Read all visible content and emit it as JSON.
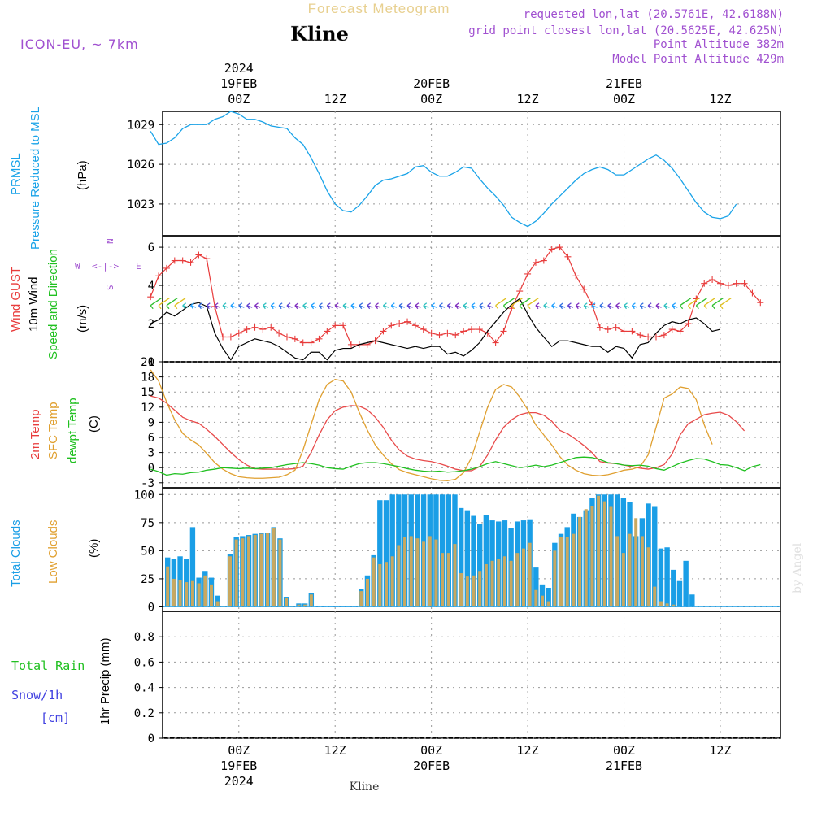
{
  "header": {
    "title": "Forecast Meteogram",
    "location": "Kline",
    "model": "ICON-EU, ~ 7km",
    "requested": "requested lon,lat (20.5761E, 42.6188N)",
    "closest": "grid point closest lon,lat (20.5625E, 42.625N)",
    "point_alt": "Point Altitude 382m",
    "model_alt": "Model Point Altitude 429m",
    "watermark": "by Angel",
    "footer_location": "Kline"
  },
  "colors": {
    "pressure": "#1aa3e8",
    "gust": "#e83c3c",
    "wind": "#000000",
    "temp": "#e84a4a",
    "sfc": "#e0a030",
    "dew": "#20c020",
    "total_cloud": "#1a9ee6",
    "low_cloud": "#c8a860",
    "purple": "#a050d0",
    "rain": "#20c020",
    "snow": "#4040e0"
  },
  "time_axis": {
    "top_labels": [
      {
        "line1": "2024",
        "line2": "19FEB",
        "line3": "00Z",
        "hour": 18
      },
      {
        "line1": "",
        "line2": "",
        "line3": "12Z",
        "hour": 30
      },
      {
        "line1": "",
        "line2": "20FEB",
        "line3": "00Z",
        "hour": 42
      },
      {
        "line1": "",
        "line2": "",
        "line3": "12Z",
        "hour": 54
      },
      {
        "line1": "",
        "line2": "21FEB",
        "line3": "00Z",
        "hour": 66
      },
      {
        "line1": "",
        "line2": "",
        "line3": "12Z",
        "hour": 78
      }
    ],
    "bottom_labels": [
      {
        "line1": "00Z",
        "line2": "19FEB",
        "line3": "2024",
        "hour": 18
      },
      {
        "line1": "12Z",
        "line2": "",
        "line3": "",
        "hour": 30
      },
      {
        "line1": "00Z",
        "line2": "20FEB",
        "line3": "",
        "hour": 42
      },
      {
        "line1": "12Z",
        "line2": "",
        "line3": "",
        "hour": 54
      },
      {
        "line1": "00Z",
        "line2": "21FEB",
        "line3": "",
        "hour": 66
      },
      {
        "line1": "12Z",
        "line2": "",
        "line3": "",
        "hour": 78
      }
    ]
  },
  "panels": {
    "pressure": {
      "label1": "PRMSL",
      "label2": "Pressure Reduced to MSL",
      "units": "(hPa)"
    },
    "wind": {
      "gust": "Wind GUST",
      "wind10": "10m Wind",
      "speed_dir": "Speed and Direction",
      "units": "(m/s)",
      "compass_n": "N",
      "compass_s": "S",
      "compass_w": "W",
      "compass_e": "E"
    },
    "temp": {
      "t2m": "2m Temp",
      "sfc": "SFC Temp",
      "dew": "dewpt Temp",
      "units": "(C)"
    },
    "clouds": {
      "total": "Total Clouds",
      "low": "Low Clouds",
      "units": "(%)"
    },
    "precip": {
      "rain": "Total  Rain",
      "snow": "Snow/1h",
      "snow_units": "[cm]",
      "ylabel": "1hr Precip (mm)"
    }
  },
  "chart_data": [
    {
      "type": "line",
      "title": "PRMSL Pressure Reduced to MSL",
      "ylabel": "(hPa)",
      "ylim": [
        1020.6,
        1030.0
      ],
      "yticks": [
        1023,
        1026,
        1029
      ],
      "x_start_hour": 7,
      "x_step_hours": 1,
      "series": [
        {
          "name": "PRMSL",
          "values": [
            1028.5,
            1027.5,
            1027.6,
            1028.0,
            1028.7,
            1029.0,
            1029.0,
            1029.0,
            1029.4,
            1029.6,
            1030.0,
            1029.8,
            1029.4,
            1029.4,
            1029.2,
            1028.9,
            1028.8,
            1028.7,
            1028.0,
            1027.5,
            1026.5,
            1025.3,
            1024.0,
            1023.0,
            1022.5,
            1022.4,
            1022.9,
            1023.6,
            1024.4,
            1024.8,
            1024.9,
            1025.1,
            1025.3,
            1025.8,
            1025.9,
            1025.4,
            1025.1,
            1025.1,
            1025.4,
            1025.8,
            1025.7,
            1024.9,
            1024.2,
            1023.6,
            1022.9,
            1022.0,
            1021.6,
            1021.3,
            1021.7,
            1022.3,
            1023.0,
            1023.6,
            1024.2,
            1024.8,
            1025.3,
            1025.6,
            1025.8,
            1025.6,
            1025.2,
            1025.2,
            1025.6,
            1026.0,
            1026.4,
            1026.7,
            1026.3,
            1025.7,
            1024.9,
            1024.0,
            1023.1,
            1022.4,
            1022.0,
            1021.9,
            1022.1,
            1023.0
          ]
        }
      ]
    },
    {
      "type": "line",
      "title": "Wind GUST / 10m Wind Speed and Direction",
      "ylabel": "(m/s)",
      "ylim": [
        0,
        6.6
      ],
      "yticks": [
        0,
        2,
        4,
        6
      ],
      "x_start_hour": 7,
      "x_step_hours": 1,
      "series": [
        {
          "name": "Wind GUST",
          "values": [
            3.4,
            4.5,
            4.9,
            5.3,
            5.3,
            5.2,
            5.6,
            5.4,
            2.9,
            1.3,
            1.3,
            1.5,
            1.7,
            1.8,
            1.7,
            1.8,
            1.5,
            1.3,
            1.2,
            1.0,
            1.0,
            1.2,
            1.6,
            1.9,
            1.9,
            0.9,
            0.9,
            0.9,
            1.1,
            1.6,
            1.9,
            2.0,
            2.1,
            1.9,
            1.7,
            1.5,
            1.4,
            1.5,
            1.4,
            1.6,
            1.7,
            1.7,
            1.5,
            1.0,
            1.6,
            2.8,
            3.7,
            4.6,
            5.2,
            5.3,
            5.9,
            6.0,
            5.5,
            4.5,
            3.8,
            3.0,
            1.8,
            1.7,
            1.8,
            1.6,
            1.6,
            1.4,
            1.3,
            1.3,
            1.4,
            1.7,
            1.6,
            2.0,
            3.3,
            4.1,
            4.3,
            4.1,
            4.0,
            4.1,
            4.1,
            3.6,
            3.1
          ]
        },
        {
          "name": "10m Wind",
          "values": [
            2.0,
            2.2,
            2.6,
            2.4,
            2.7,
            3.0,
            3.1,
            2.9,
            1.5,
            0.7,
            0.1,
            0.8,
            1.0,
            1.2,
            1.1,
            1.0,
            0.8,
            0.5,
            0.2,
            0.1,
            0.5,
            0.5,
            0.1,
            0.6,
            0.7,
            0.7,
            0.9,
            1.0,
            1.1,
            1.0,
            0.9,
            0.8,
            0.7,
            0.8,
            0.7,
            0.8,
            0.8,
            0.4,
            0.5,
            0.3,
            0.6,
            1.0,
            1.6,
            2.1,
            2.6,
            3.0,
            3.3,
            2.5,
            1.8,
            1.3,
            0.8,
            1.1,
            1.1,
            1.0,
            0.9,
            0.8,
            0.8,
            0.5,
            0.8,
            0.7,
            0.2,
            0.9,
            1.0,
            1.5,
            1.9,
            2.1,
            2.0,
            2.2,
            2.3,
            2.0,
            1.6,
            1.7
          ]
        },
        {
          "name": "Wind Direction",
          "values": [
            4,
            5,
            5,
            6,
            6,
            6,
            6,
            5,
            6,
            6,
            7,
            7,
            7,
            6,
            6,
            6,
            6,
            6,
            6,
            6,
            6,
            6,
            6,
            6,
            6,
            6,
            6,
            6,
            6,
            6,
            6,
            6,
            6,
            6,
            6,
            6,
            6,
            6,
            6,
            6,
            6,
            6,
            6,
            6,
            6,
            6,
            6,
            6,
            6,
            6,
            6,
            6,
            6,
            6,
            6,
            6,
            6,
            6,
            6,
            6,
            6,
            6,
            6,
            6,
            6
          ]
        }
      ]
    },
    {
      "type": "line",
      "title": "2m Temp / SFC Temp / dewpt Temp",
      "ylabel": "(C)",
      "ylim": [
        -4,
        21
      ],
      "yticks": [
        -3,
        0,
        3,
        6,
        9,
        12,
        15,
        18,
        21
      ],
      "x_start_hour": 7,
      "x_step_hours": 1,
      "series": [
        {
          "name": "2m Temp",
          "values": [
            14.2,
            13.8,
            12.8,
            11.4,
            10.0,
            9.3,
            8.8,
            7.6,
            6.2,
            4.6,
            3.0,
            1.6,
            0.5,
            -0.2,
            -0.3,
            -0.3,
            -0.3,
            -0.3,
            -0.2,
            0.3,
            3.0,
            6.5,
            9.5,
            11.3,
            12.0,
            12.3,
            12.2,
            11.5,
            10.0,
            8.0,
            5.5,
            3.5,
            2.3,
            1.7,
            1.4,
            1.2,
            0.8,
            0.3,
            -0.3,
            -0.6,
            -0.6,
            0.2,
            2.5,
            5.5,
            8.0,
            9.5,
            10.5,
            10.9,
            10.9,
            10.4,
            9.2,
            7.4,
            6.7,
            5.6,
            4.4,
            3.0,
            1.2,
            0.9,
            0.8,
            0.5,
            0.2,
            -0.1,
            -0.3,
            0.0,
            0.6,
            2.7,
            6.5,
            8.7,
            9.6,
            10.5,
            10.8,
            11.0,
            10.4,
            9.1,
            7.3
          ]
        },
        {
          "name": "SFC Temp",
          "values": [
            19.4,
            17.2,
            13.0,
            9.5,
            6.8,
            5.5,
            4.5,
            2.8,
            1.0,
            -0.3,
            -1.2,
            -1.8,
            -2.0,
            -2.1,
            -2.1,
            -2.0,
            -1.9,
            -1.4,
            -0.5,
            3.5,
            8.5,
            13.5,
            16.5,
            17.5,
            17.2,
            15.0,
            11.0,
            7.5,
            4.5,
            2.5,
            0.8,
            -0.4,
            -1.0,
            -1.4,
            -1.8,
            -2.2,
            -2.5,
            -2.6,
            -2.3,
            -1.0,
            2.0,
            7.0,
            12.0,
            15.5,
            16.5,
            16.0,
            14.0,
            11.5,
            8.5,
            6.5,
            4.5,
            2.2,
            0.5,
            -0.5,
            -1.2,
            -1.5,
            -1.6,
            -1.4,
            -1.0,
            -0.5,
            -0.3,
            0.2,
            2.5,
            8.0,
            13.8,
            14.6,
            16.0,
            15.7,
            13.5,
            8.5,
            4.6
          ]
        },
        {
          "name": "dewpt Temp",
          "values": [
            -0.3,
            -0.8,
            -1.5,
            -1.2,
            -1.3,
            -1.0,
            -0.9,
            -0.5,
            -0.3,
            0.0,
            -0.1,
            -0.2,
            -0.1,
            -0.2,
            -0.1,
            0.0,
            0.3,
            0.6,
            0.8,
            1.0,
            0.8,
            0.5,
            0.0,
            -0.2,
            -0.3,
            0.3,
            0.8,
            1.0,
            1.0,
            0.8,
            0.5,
            0.2,
            -0.2,
            -0.5,
            -0.7,
            -0.8,
            -0.7,
            -0.9,
            -0.8,
            -0.6,
            -0.3,
            0.2,
            0.8,
            1.2,
            0.8,
            0.4,
            0.0,
            0.2,
            0.5,
            0.2,
            0.5,
            1.0,
            1.5,
            2.0,
            2.1,
            2.0,
            1.6,
            1.0,
            0.8,
            0.5,
            0.4,
            0.5,
            0.3,
            -0.2,
            -0.5,
            0.2,
            0.9,
            1.4,
            1.8,
            1.7,
            1.2,
            0.6,
            0.5,
            0.0,
            -0.6,
            0.2,
            0.6
          ]
        }
      ]
    },
    {
      "type": "bar",
      "title": "Total Clouds / Low Clouds",
      "ylabel": "(%)",
      "ylim": [
        -4,
        106
      ],
      "yticks": [
        0,
        25,
        50,
        75,
        100
      ],
      "x_start_hour": 7,
      "x_step_hours": 1,
      "series": [
        {
          "name": "Total Clouds",
          "values": [
            44,
            43,
            45,
            43,
            71,
            26,
            32,
            26,
            10,
            1,
            47,
            62,
            63,
            64,
            65,
            66,
            66,
            71,
            61,
            9,
            1,
            3,
            3,
            12,
            0,
            0,
            0,
            0,
            0,
            0,
            0,
            16,
            28,
            46,
            95,
            95,
            100,
            100,
            100,
            100,
            100,
            100,
            100,
            100,
            100,
            100,
            100,
            88,
            86,
            81,
            74,
            82,
            77,
            76,
            77,
            70,
            76,
            77,
            78,
            35,
            20,
            17,
            57,
            65,
            71,
            83,
            80,
            86,
            97,
            100,
            100,
            100,
            100,
            97,
            93,
            63,
            79,
            92,
            89,
            52,
            53,
            33,
            23,
            41,
            11
          ]
        },
        {
          "name": "Low Clouds",
          "values": [
            36,
            25,
            24,
            22,
            23,
            21,
            28,
            20,
            5,
            1,
            45,
            60,
            61,
            63,
            64,
            65,
            66,
            70,
            60,
            8,
            1,
            2,
            2,
            11,
            0,
            0,
            0,
            0,
            0,
            0,
            0,
            14,
            25,
            44,
            38,
            40,
            45,
            55,
            62,
            63,
            61,
            58,
            63,
            60,
            48,
            48,
            56,
            30,
            27,
            28,
            32,
            38,
            41,
            43,
            45,
            41,
            48,
            52,
            57,
            15,
            10,
            5,
            50,
            62,
            62,
            65,
            80,
            87,
            90,
            99,
            94,
            89,
            63,
            48,
            65,
            79,
            63,
            53,
            18,
            5,
            3,
            2,
            0,
            0,
            0
          ]
        }
      ]
    },
    {
      "type": "bar",
      "title": "1hr Precip",
      "ylabel": "1hr Precip (mm)",
      "ylim": [
        0,
        1.0
      ],
      "yticks": [
        0,
        0.2,
        0.4,
        0.6,
        0.8
      ],
      "series": [
        {
          "name": "Total Rain",
          "values": [
            0
          ]
        },
        {
          "name": "Snow/1h",
          "values": [
            0
          ]
        }
      ]
    }
  ]
}
